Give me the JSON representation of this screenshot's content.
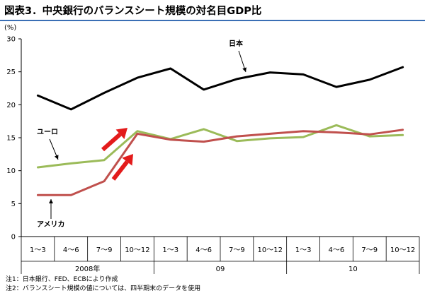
{
  "title": "図表3．中央銀行のバランスシート規模の対名目GDP比",
  "notes": [
    "注1：日本銀行、FED、ECBにより作成",
    "注2：バランスシート規模の値については、四半期末のデータを使用"
  ],
  "chart_data": {
    "type": "line",
    "title": "図表3．中央銀行のバランスシート規模の対名目GDP比",
    "ylabel": "(%)",
    "xlabel": "",
    "ylim": [
      0,
      30
    ],
    "yticks": [
      "0",
      "5",
      "10",
      "15",
      "20",
      "25",
      "30"
    ],
    "grid": false,
    "categories": [
      "1～3",
      "4～6",
      "7～9",
      "10～12",
      "1～3",
      "4～6",
      "7～9",
      "10～12",
      "1～3",
      "4～6",
      "7～9",
      "10～12"
    ],
    "year_groups": [
      {
        "label": "2008年",
        "start": 0,
        "end": 3
      },
      {
        "label": "09",
        "start": 4,
        "end": 7
      },
      {
        "label": "10",
        "start": 8,
        "end": 11
      }
    ],
    "series": [
      {
        "name": "日本",
        "color": "#000000",
        "values": [
          21.4,
          19.3,
          21.8,
          24.1,
          25.5,
          22.3,
          23.9,
          24.9,
          24.6,
          22.7,
          23.8,
          25.7
        ]
      },
      {
        "name": "ユーロ",
        "color": "#9bbb59",
        "values": [
          10.5,
          11.1,
          11.6,
          16.0,
          14.8,
          16.3,
          14.5,
          14.9,
          15.1,
          16.9,
          15.2,
          15.4
        ]
      },
      {
        "name": "アメリカ",
        "color": "#c0504d",
        "values": [
          6.3,
          6.3,
          8.4,
          15.6,
          14.7,
          14.4,
          15.2,
          15.6,
          16.0,
          15.8,
          15.5,
          16.2
        ]
      }
    ]
  }
}
